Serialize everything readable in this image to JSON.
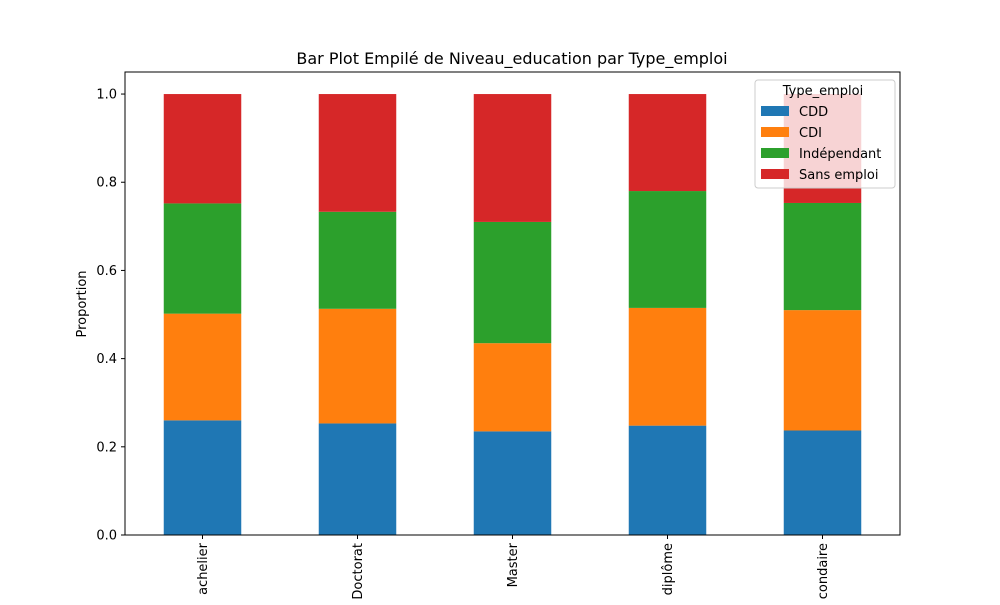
{
  "chart_data": {
    "type": "bar",
    "stacked": true,
    "title": "Bar Plot Empilé de Niveau_education par Type_emploi",
    "xlabel": "",
    "ylabel": "Proportion",
    "ylim": [
      0,
      1.05
    ],
    "yticks": [
      0.0,
      0.2,
      0.4,
      0.6,
      0.8,
      1.0
    ],
    "ytick_labels": [
      "0.0",
      "0.2",
      "0.4",
      "0.6",
      "0.8",
      "1.0"
    ],
    "grid": false,
    "legend": {
      "title": "Type_emploi",
      "position": "top-right"
    },
    "categories": [
      "Bachelier",
      "Doctorat",
      "Master",
      "Sans diplôme",
      "Secondaire"
    ],
    "visible_category_labels": [
      "achelier",
      "Doctorat",
      "Master",
      "diplôme",
      "condaire"
    ],
    "series": [
      {
        "name": "CDD",
        "color": "#1f77b4",
        "values": [
          0.26,
          0.253,
          0.235,
          0.248,
          0.237
        ]
      },
      {
        "name": "CDI",
        "color": "#ff7f0e",
        "values": [
          0.242,
          0.26,
          0.2,
          0.267,
          0.273
        ]
      },
      {
        "name": "Indépendant",
        "color": "#2ca02c",
        "values": [
          0.25,
          0.22,
          0.275,
          0.265,
          0.243
        ]
      },
      {
        "name": "Sans emploi",
        "color": "#d62728",
        "values": [
          0.248,
          0.267,
          0.29,
          0.22,
          0.247
        ]
      }
    ]
  }
}
